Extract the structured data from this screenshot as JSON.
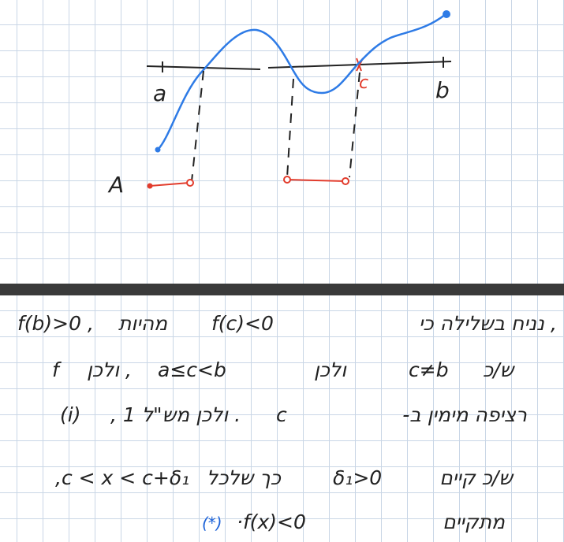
{
  "figure": {
    "labels": {
      "a": "a",
      "b": "b",
      "c": "c",
      "A": "A"
    },
    "colors": {
      "curve": "#2e7be6",
      "set_A": "#e23c2c",
      "axis": "#222222",
      "grid": "#c9d6e6",
      "marker": "#1c62d8"
    }
  },
  "notes": {
    "line1": {
      "math_left": "f(b)>0 ,",
      "math_mid": "f(c)<0",
      "text_right": "נניח בשלילה כי",
      "text_mid": "מהיות",
      "text_tail": ","
    },
    "line2": {
      "math_left": "f",
      "math_mid": "a≤c<b",
      "text_mid": ", ולכן",
      "math_right": "c≠b",
      "text_right": "ולכן",
      "text_edge": "ש/כ"
    },
    "line3": {
      "text": "רציפה מימין ב-",
      "math_c": "c",
      "text_mid": ". ולכן מש\"ל 1 ,",
      "math_tag": "(i)"
    },
    "line4": {
      "math_left": ",c < x < c+δ₁",
      "text_mid": "כך שלכל",
      "math_mid": "δ₁>0",
      "text_right": "ש/כ קיים"
    },
    "line5": {
      "star": "(*)",
      "math": "·f(x)<0",
      "text_right": "מתקיים"
    }
  }
}
